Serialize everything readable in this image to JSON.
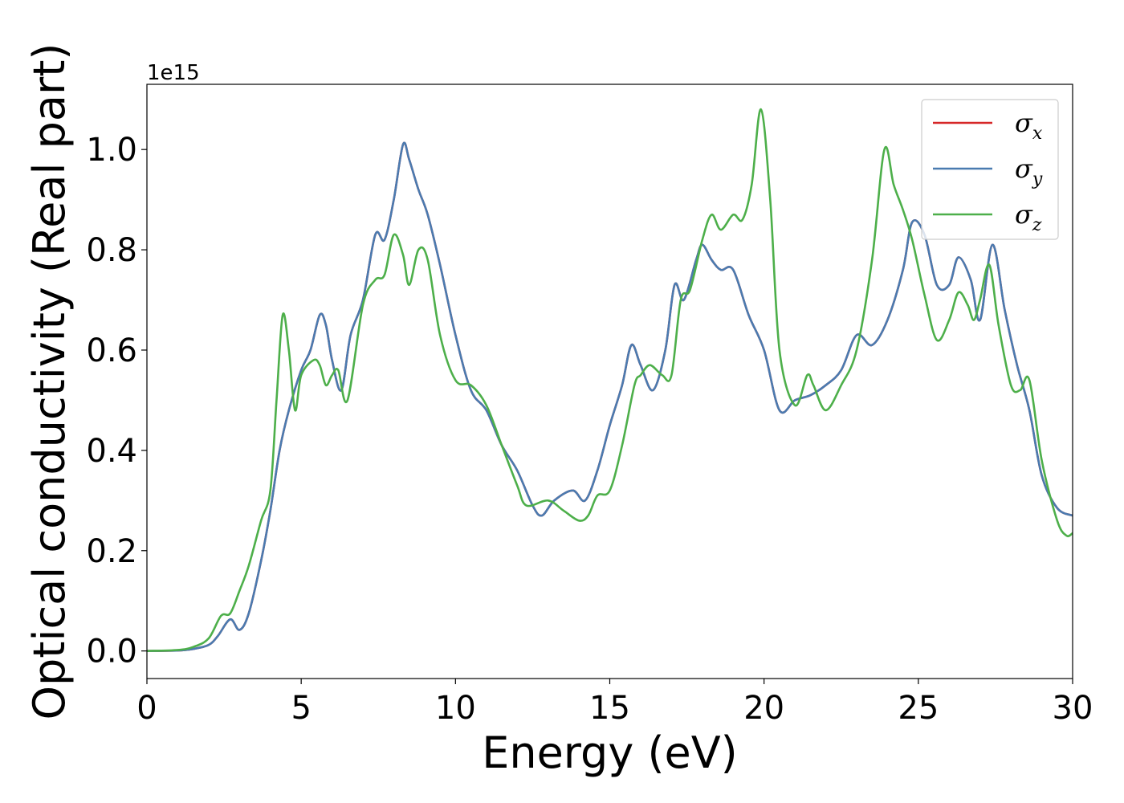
{
  "chart_data": {
    "type": "line",
    "xlabel": "Energy (eV)",
    "ylabel": "Optical conductivity (Real part)",
    "y_offset_label": "1e15",
    "xlim": [
      0,
      30
    ],
    "ylim": [
      -0.055,
      1.13
    ],
    "x_ticks": [
      0,
      5,
      10,
      15,
      20,
      25,
      30
    ],
    "x_tick_labels": [
      "0",
      "5",
      "10",
      "15",
      "20",
      "25",
      "30"
    ],
    "y_ticks": [
      0.0,
      0.2,
      0.4,
      0.6,
      0.8,
      1.0
    ],
    "y_tick_labels": [
      "0.0",
      "0.2",
      "0.4",
      "0.6",
      "0.8",
      "1.0"
    ],
    "grid": false,
    "legend_position": "top-right",
    "series": [
      {
        "name": "σx",
        "legend_main": "σ",
        "legend_sub": "x",
        "color": "#d62728",
        "x": [
          0,
          1,
          1.5,
          2,
          2.3,
          2.7,
          3.0,
          3.3,
          3.7,
          4.0,
          4.3,
          4.6,
          5.0,
          5.3,
          5.6,
          5.8,
          6.0,
          6.3,
          6.6,
          7.0,
          7.4,
          7.7,
          8.0,
          8.3,
          8.5,
          8.8,
          9.1,
          9.5,
          10.0,
          10.5,
          11.0,
          11.5,
          12.0,
          12.5,
          12.8,
          13.2,
          13.8,
          14.2,
          14.6,
          15.0,
          15.4,
          15.7,
          16.0,
          16.4,
          16.8,
          17.1,
          17.4,
          17.8,
          18.0,
          18.3,
          18.6,
          19.0,
          19.5,
          20.0,
          20.5,
          21.0,
          21.5,
          22.0,
          22.5,
          23.0,
          23.5,
          24.0,
          24.5,
          24.8,
          25.2,
          25.6,
          26.0,
          26.3,
          26.7,
          27.0,
          27.4,
          27.8,
          28.2,
          28.6,
          29.0,
          29.5,
          30.0
        ],
        "y": [
          0.0,
          0.001,
          0.004,
          0.012,
          0.03,
          0.063,
          0.042,
          0.075,
          0.18,
          0.28,
          0.4,
          0.48,
          0.56,
          0.6,
          0.67,
          0.65,
          0.58,
          0.52,
          0.63,
          0.7,
          0.83,
          0.82,
          0.9,
          1.01,
          0.98,
          0.92,
          0.87,
          0.77,
          0.63,
          0.52,
          0.48,
          0.41,
          0.36,
          0.29,
          0.27,
          0.3,
          0.32,
          0.3,
          0.36,
          0.45,
          0.53,
          0.61,
          0.57,
          0.52,
          0.6,
          0.73,
          0.7,
          0.78,
          0.81,
          0.78,
          0.76,
          0.76,
          0.67,
          0.6,
          0.48,
          0.5,
          0.51,
          0.53,
          0.56,
          0.63,
          0.61,
          0.66,
          0.76,
          0.855,
          0.83,
          0.73,
          0.73,
          0.785,
          0.74,
          0.66,
          0.81,
          0.68,
          0.57,
          0.48,
          0.35,
          0.285,
          0.27
        ]
      },
      {
        "name": "σy",
        "legend_main": "σ",
        "legend_sub": "y",
        "color": "#4a7bb0",
        "x": [
          0,
          1,
          1.5,
          2,
          2.3,
          2.7,
          3.0,
          3.3,
          3.7,
          4.0,
          4.3,
          4.6,
          5.0,
          5.3,
          5.6,
          5.8,
          6.0,
          6.3,
          6.6,
          7.0,
          7.4,
          7.7,
          8.0,
          8.3,
          8.5,
          8.8,
          9.1,
          9.5,
          10.0,
          10.5,
          11.0,
          11.5,
          12.0,
          12.5,
          12.8,
          13.2,
          13.8,
          14.2,
          14.6,
          15.0,
          15.4,
          15.7,
          16.0,
          16.4,
          16.8,
          17.1,
          17.4,
          17.8,
          18.0,
          18.3,
          18.6,
          19.0,
          19.5,
          20.0,
          20.5,
          21.0,
          21.5,
          22.0,
          22.5,
          23.0,
          23.5,
          24.0,
          24.5,
          24.8,
          25.2,
          25.6,
          26.0,
          26.3,
          26.7,
          27.0,
          27.4,
          27.8,
          28.2,
          28.6,
          29.0,
          29.5,
          30.0
        ],
        "y": [
          0.0,
          0.001,
          0.004,
          0.012,
          0.03,
          0.063,
          0.042,
          0.075,
          0.18,
          0.28,
          0.4,
          0.48,
          0.56,
          0.6,
          0.67,
          0.65,
          0.58,
          0.52,
          0.63,
          0.7,
          0.83,
          0.82,
          0.9,
          1.01,
          0.98,
          0.92,
          0.87,
          0.77,
          0.63,
          0.52,
          0.48,
          0.41,
          0.36,
          0.29,
          0.27,
          0.3,
          0.32,
          0.3,
          0.36,
          0.45,
          0.53,
          0.61,
          0.57,
          0.52,
          0.6,
          0.73,
          0.7,
          0.78,
          0.81,
          0.78,
          0.76,
          0.76,
          0.67,
          0.6,
          0.48,
          0.5,
          0.51,
          0.53,
          0.56,
          0.63,
          0.61,
          0.66,
          0.76,
          0.855,
          0.83,
          0.73,
          0.73,
          0.785,
          0.74,
          0.66,
          0.81,
          0.68,
          0.57,
          0.48,
          0.35,
          0.285,
          0.27
        ]
      },
      {
        "name": "σz",
        "legend_main": "σ",
        "legend_sub": "z",
        "color": "#4daf4a",
        "x": [
          0,
          1,
          1.5,
          2,
          2.4,
          2.7,
          3.0,
          3.3,
          3.7,
          4.0,
          4.2,
          4.4,
          4.6,
          4.8,
          5.0,
          5.4,
          5.6,
          5.8,
          6.0,
          6.2,
          6.5,
          7.0,
          7.4,
          7.7,
          8.0,
          8.3,
          8.5,
          8.8,
          9.1,
          9.5,
          10.0,
          10.5,
          11.0,
          11.5,
          12.0,
          12.3,
          13.0,
          13.5,
          14.0,
          14.3,
          14.6,
          15.0,
          15.4,
          15.8,
          16.0,
          16.3,
          16.7,
          17.0,
          17.3,
          17.6,
          18.0,
          18.3,
          18.6,
          19.0,
          19.3,
          19.6,
          19.9,
          20.2,
          20.5,
          21.0,
          21.4,
          21.6,
          22.0,
          22.5,
          23.0,
          23.5,
          23.9,
          24.2,
          24.5,
          24.8,
          25.2,
          25.6,
          26.0,
          26.3,
          26.6,
          26.8,
          27.0,
          27.3,
          27.6,
          28.0,
          28.3,
          28.6,
          29.0,
          29.5,
          29.8,
          30.0
        ],
        "y": [
          0.0,
          0.002,
          0.008,
          0.025,
          0.07,
          0.075,
          0.12,
          0.17,
          0.26,
          0.32,
          0.5,
          0.67,
          0.6,
          0.48,
          0.55,
          0.58,
          0.57,
          0.53,
          0.55,
          0.56,
          0.5,
          0.69,
          0.74,
          0.75,
          0.83,
          0.79,
          0.73,
          0.8,
          0.78,
          0.63,
          0.54,
          0.53,
          0.49,
          0.41,
          0.33,
          0.29,
          0.3,
          0.28,
          0.26,
          0.27,
          0.31,
          0.32,
          0.41,
          0.53,
          0.55,
          0.57,
          0.55,
          0.55,
          0.7,
          0.72,
          0.82,
          0.87,
          0.84,
          0.87,
          0.86,
          0.93,
          1.08,
          0.9,
          0.6,
          0.49,
          0.55,
          0.53,
          0.48,
          0.53,
          0.6,
          0.78,
          1.0,
          0.93,
          0.88,
          0.82,
          0.71,
          0.62,
          0.66,
          0.715,
          0.69,
          0.66,
          0.7,
          0.77,
          0.65,
          0.53,
          0.52,
          0.54,
          0.38,
          0.26,
          0.23,
          0.235
        ]
      }
    ]
  }
}
